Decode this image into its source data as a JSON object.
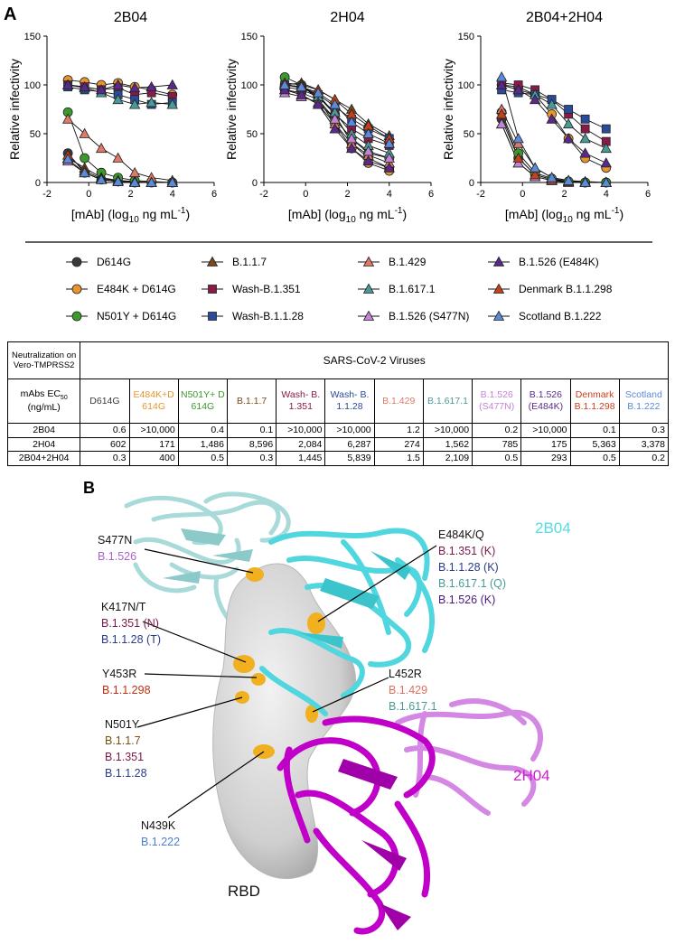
{
  "panel_a": "A",
  "chart_data": [
    {
      "type": "line",
      "title": "2B04",
      "y_label": "Relative infectivity",
      "x_label": {
        "pre": "[mAb] (log",
        "sub": "10",
        "mid": " ng mL",
        "sup": "-1",
        "post": ")"
      },
      "x": [
        -1,
        -0.2,
        0.6,
        1.4,
        2.2,
        3,
        4
      ],
      "xlim": [
        -2,
        6
      ],
      "xticks": [
        -2,
        0,
        2,
        4,
        6
      ],
      "ylim": [
        0,
        150
      ],
      "yticks": [
        0,
        50,
        100,
        150
      ],
      "series": [
        {
          "values": [
            30,
            10,
            3,
            1,
            0,
            0,
            0
          ]
        },
        {
          "values": [
            105,
            103,
            100,
            102,
            98,
            95,
            90
          ]
        },
        {
          "values": [
            72,
            25,
            10,
            5,
            2,
            1,
            0
          ]
        },
        {
          "values": [
            25,
            15,
            5,
            2,
            1,
            0,
            0
          ]
        },
        {
          "values": [
            100,
            98,
            95,
            97,
            90,
            92,
            88
          ]
        },
        {
          "values": [
            98,
            95,
            93,
            90,
            85,
            80,
            82
          ]
        },
        {
          "values": [
            65,
            50,
            35,
            25,
            10,
            5,
            2
          ]
        },
        {
          "values": [
            100,
            97,
            92,
            85,
            80,
            82,
            80
          ]
        },
        {
          "values": [
            22,
            10,
            3,
            1,
            0,
            0,
            0
          ]
        },
        {
          "values": [
            100,
            98,
            95,
            100,
            97,
            98,
            100
          ]
        },
        {
          "values": [
            28,
            12,
            4,
            2,
            1,
            0,
            0
          ]
        },
        {
          "values": [
            24,
            10,
            3,
            1,
            0,
            0,
            0
          ]
        }
      ]
    },
    {
      "type": "line",
      "title": "2H04",
      "y_label": "Relative infectivity",
      "x_label": {
        "pre": "[mAb] (log",
        "sub": "10",
        "mid": " ng mL",
        "sup": "-1",
        "post": ")"
      },
      "x": [
        -1,
        -0.2,
        0.6,
        1.4,
        2.2,
        3,
        4
      ],
      "xlim": [
        -2,
        6
      ],
      "xticks": [
        -2,
        0,
        2,
        4,
        6
      ],
      "ylim": [
        0,
        150
      ],
      "yticks": [
        0,
        50,
        100,
        150
      ],
      "series": [
        {
          "values": [
            100,
            98,
            90,
            70,
            40,
            25,
            15
          ]
        },
        {
          "values": [
            95,
            92,
            85,
            60,
            35,
            20,
            12
          ]
        },
        {
          "values": [
            108,
            100,
            85,
            65,
            45,
            30,
            25
          ]
        },
        {
          "values": [
            100,
            102,
            95,
            85,
            75,
            60,
            48
          ]
        },
        {
          "values": [
            98,
            95,
            88,
            70,
            55,
            45,
            38
          ]
        },
        {
          "values": [
            100,
            97,
            90,
            78,
            65,
            55,
            45
          ]
        },
        {
          "values": [
            95,
            90,
            80,
            60,
            40,
            28,
            20
          ]
        },
        {
          "values": [
            100,
            98,
            88,
            72,
            50,
            38,
            30
          ]
        },
        {
          "values": [
            92,
            88,
            82,
            65,
            45,
            32,
            25
          ]
        },
        {
          "values": [
            95,
            90,
            80,
            55,
            35,
            22,
            15
          ]
        },
        {
          "values": [
            102,
            100,
            95,
            85,
            70,
            58,
            45
          ]
        },
        {
          "values": [
            100,
            98,
            92,
            80,
            62,
            50,
            40
          ]
        }
      ]
    },
    {
      "type": "line",
      "title": "2B04+2H04",
      "y_label": "Relative infectivity",
      "x_label": {
        "pre": "[mAb] (log",
        "sub": "10",
        "mid": " ng mL",
        "sup": "-1",
        "post": ")"
      },
      "x": [
        -1,
        -0.2,
        0.6,
        1.4,
        2.2,
        3,
        4
      ],
      "xlim": [
        -2,
        6
      ],
      "xticks": [
        -2,
        0,
        2,
        4,
        6
      ],
      "ylim": [
        0,
        150
      ],
      "yticks": [
        0,
        50,
        100,
        150
      ],
      "series": [
        {
          "values": [
            65,
            25,
            8,
            3,
            1,
            0,
            0
          ]
        },
        {
          "values": [
            100,
            98,
            90,
            70,
            45,
            25,
            15
          ]
        },
        {
          "values": [
            72,
            30,
            10,
            4,
            1,
            0,
            0
          ]
        },
        {
          "values": [
            60,
            20,
            6,
            2,
            1,
            0,
            0
          ]
        },
        {
          "values": [
            102,
            100,
            95,
            85,
            70,
            55,
            42
          ]
        },
        {
          "values": [
            95,
            92,
            90,
            85,
            75,
            65,
            55
          ]
        },
        {
          "values": [
            75,
            40,
            15,
            5,
            2,
            1,
            0
          ]
        },
        {
          "values": [
            100,
            95,
            90,
            80,
            60,
            45,
            35
          ]
        },
        {
          "values": [
            60,
            20,
            6,
            2,
            0,
            0,
            0
          ]
        },
        {
          "values": [
            100,
            95,
            85,
            65,
            45,
            30,
            20
          ]
        },
        {
          "values": [
            70,
            25,
            8,
            3,
            1,
            0,
            0
          ]
        },
        {
          "values": [
            108,
            45,
            15,
            5,
            2,
            0,
            0
          ]
        }
      ]
    }
  ],
  "legend": [
    {
      "name": "D614G",
      "color": "#3a3a3a",
      "marker": "circle"
    },
    {
      "name": "E484K + D614G",
      "color": "#e8952e",
      "marker": "circle"
    },
    {
      "name": "N501Y + D614G",
      "color": "#3c9a2c",
      "marker": "circle"
    },
    {
      "name": "B.1.1.7",
      "color": "#7a4a18",
      "marker": "triangle"
    },
    {
      "name": "Wash-B.1.351",
      "color": "#8a1a48",
      "marker": "square"
    },
    {
      "name": "Wash-B.1.1.28",
      "color": "#2a4a9a",
      "marker": "square"
    },
    {
      "name": "B.1.429",
      "color": "#e07a68",
      "marker": "triangle"
    },
    {
      "name": "B.1.617.1",
      "color": "#4a9a98",
      "marker": "triangle"
    },
    {
      "name": "B.1.526 (S477N)",
      "color": "#c483d6",
      "marker": "triangle"
    },
    {
      "name": "B.1.526 (E484K)",
      "color": "#5a2a8a",
      "marker": "triangle"
    },
    {
      "name": "Denmark B.1.1.298",
      "color": "#c8401a",
      "marker": "triangle"
    },
    {
      "name": "Scotland B.1.222",
      "color": "#5a8ad8",
      "marker": "triangle"
    }
  ],
  "table": {
    "corner": "Neutralization on Vero-TMPRSS2",
    "group_header": "SARS-CoV-2 Viruses",
    "row_header": {
      "pre": "mAbs EC",
      "sub": "50",
      "post": " (ng/mL)"
    },
    "columns": [
      "D614G",
      "E484K+D614G",
      "N501Y+ D614G",
      "B.1.1.7",
      "Wash- B.1.351",
      "Wash- B.1.1.28",
      "B.1.429",
      "B.1.617.1",
      "B.1.526 (S477N)",
      "B.1.526 (E484K)",
      "Denmark B.1.1.298",
      "Scotland B.1.222"
    ],
    "rows": [
      {
        "name": "2B04",
        "values": [
          "0.6",
          ">10,000",
          "0.4",
          "0.1",
          ">10,000",
          ">10,000",
          "1.2",
          ">10,000",
          "0.2",
          ">10,000",
          "0.1",
          "0.3"
        ]
      },
      {
        "name": "2H04",
        "values": [
          "602",
          "171",
          "1,486",
          "8,596",
          "2,084",
          "6,287",
          "274",
          "1,562",
          "785",
          "175",
          "5,363",
          "3,378"
        ]
      },
      {
        "name": "2B04+2H04",
        "values": [
          "0.3",
          "400",
          "0.5",
          "0.3",
          "1,445",
          "5,839",
          "1.5",
          "2,109",
          "0.5",
          "293",
          "0.5",
          "0.2"
        ]
      }
    ]
  },
  "structure": {
    "panel": "B",
    "antibody_1": "2B04",
    "antibody_2": "2H04",
    "domain": "RBD",
    "sites": [
      {
        "mutation": "S477N",
        "lineages": [
          {
            "text": "B.1.526",
            "color": "#a863cc"
          }
        ]
      },
      {
        "mutation": "E484K/Q",
        "lineages": [
          {
            "text": "B.1.351 (K)",
            "color": "#7a1a4a"
          },
          {
            "text": "B.1.1.28 (K)",
            "color": "#2a3a8a"
          },
          {
            "text": "B.1.617.1 (Q)",
            "color": "#4a9a98"
          },
          {
            "text": "B.1.526 (K)",
            "color": "#4a1a7a"
          }
        ]
      },
      {
        "mutation": "K417N/T",
        "lineages": [
          {
            "text": "B.1.351 (N)",
            "color": "#7a1a4a"
          },
          {
            "text": "B.1.1.28 (T)",
            "color": "#2a3a8a"
          }
        ]
      },
      {
        "mutation": "Y453R",
        "lineages": [
          {
            "text": "B.1.1.298",
            "color": "#c03010"
          }
        ]
      },
      {
        "mutation": "L452R",
        "lineages": [
          {
            "text": "B.1.429",
            "color": "#e07060"
          },
          {
            "text": "B.1.617.1",
            "color": "#4a9a98"
          }
        ]
      },
      {
        "mutation": "N501Y",
        "lineages": [
          {
            "text": "B.1.1.7",
            "color": "#7a5010"
          },
          {
            "text": "B.1.351",
            "color": "#7a1a4a"
          },
          {
            "text": "B.1.1.28",
            "color": "#2a3a8a"
          }
        ]
      },
      {
        "mutation": "N439K",
        "lineages": [
          {
            "text": "B.1.222",
            "color": "#4a80d8"
          }
        ]
      }
    ]
  }
}
